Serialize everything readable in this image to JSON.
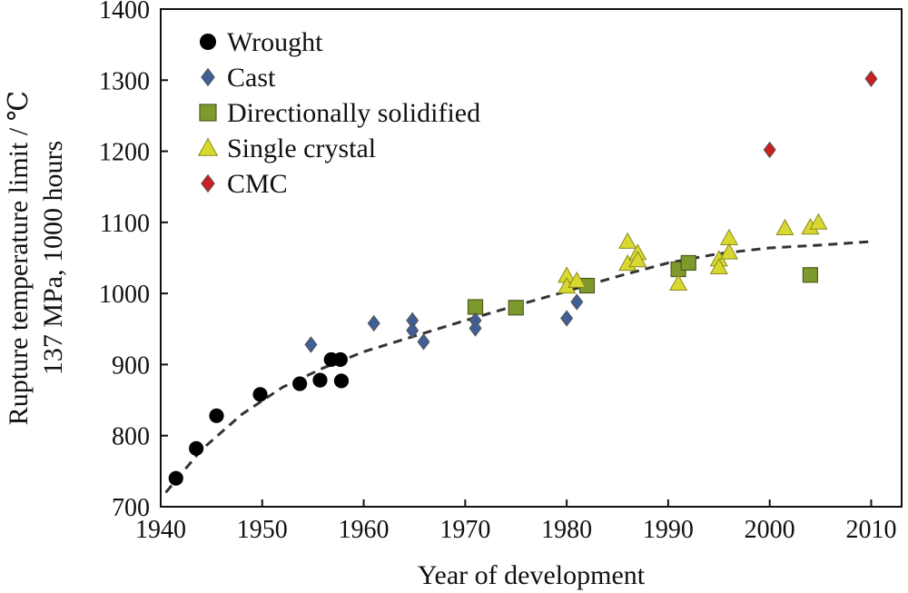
{
  "chart_data": {
    "type": "scatter",
    "xlabel": "Year of development",
    "ylabel_line1": "Rupture temperature limit / ℃",
    "ylabel_line2": "137 MPa, 1000 hours",
    "xlim": [
      1940,
      2013
    ],
    "ylim": [
      700,
      1400
    ],
    "xticks": [
      1940,
      1950,
      1960,
      1970,
      1980,
      1990,
      2000,
      2010
    ],
    "yticks": [
      700,
      800,
      900,
      1000,
      1100,
      1200,
      1300,
      1400
    ],
    "grid": false,
    "legend_position": "top-left",
    "series": [
      {
        "name": "Wrought",
        "marker": "circle",
        "color": "#000000",
        "points": [
          [
            1941.5,
            740
          ],
          [
            1943.5,
            782
          ],
          [
            1945.5,
            828
          ],
          [
            1949.8,
            858
          ],
          [
            1953.7,
            873
          ],
          [
            1955.7,
            878
          ],
          [
            1956.8,
            907
          ],
          [
            1957.7,
            907
          ],
          [
            1957.8,
            877
          ]
        ]
      },
      {
        "name": "Cast",
        "marker": "diamond",
        "color": "#3f5f96",
        "points": [
          [
            1954.8,
            928
          ],
          [
            1961.0,
            958
          ],
          [
            1964.8,
            962
          ],
          [
            1964.8,
            948
          ],
          [
            1965.9,
            932
          ],
          [
            1971.0,
            962
          ],
          [
            1971.0,
            951
          ],
          [
            1980.0,
            965
          ],
          [
            1981.0,
            988
          ]
        ]
      },
      {
        "name": "Directionally solidified",
        "marker": "square",
        "color": "#7f9a2c",
        "points": [
          [
            1971.0,
            981
          ],
          [
            1975.0,
            980
          ],
          [
            1982.0,
            1011
          ],
          [
            1991.0,
            1034
          ],
          [
            1992.0,
            1043
          ],
          [
            2004.0,
            1026
          ]
        ]
      },
      {
        "name": "Single crystal",
        "marker": "triangle",
        "color": "#d8d830",
        "points": [
          [
            1980.0,
            1025
          ],
          [
            1980.0,
            1010
          ],
          [
            1981.0,
            1018
          ],
          [
            1986.0,
            1073
          ],
          [
            1986.0,
            1042
          ],
          [
            1987.0,
            1057
          ],
          [
            1987.0,
            1047
          ],
          [
            1991.0,
            1014
          ],
          [
            1995.0,
            1048
          ],
          [
            1995.0,
            1037
          ],
          [
            1996.0,
            1078
          ],
          [
            1996.0,
            1058
          ],
          [
            2001.5,
            1092
          ],
          [
            2004.0,
            1093
          ],
          [
            2004.8,
            1100
          ]
        ]
      },
      {
        "name": "CMC",
        "marker": "diamond",
        "color": "#cc1f1f",
        "points": [
          [
            2000.0,
            1202
          ],
          [
            2010.0,
            1302
          ]
        ]
      }
    ],
    "trend_line": [
      [
        1940.5,
        720
      ],
      [
        1944,
        780
      ],
      [
        1948,
        830
      ],
      [
        1952,
        868
      ],
      [
        1956,
        895
      ],
      [
        1960,
        918
      ],
      [
        1965,
        940
      ],
      [
        1970,
        962
      ],
      [
        1975,
        983
      ],
      [
        1980,
        1003
      ],
      [
        1985,
        1024
      ],
      [
        1990,
        1043
      ],
      [
        1995,
        1056
      ],
      [
        2000,
        1064
      ],
      [
        2005,
        1068
      ],
      [
        2010,
        1073
      ]
    ]
  }
}
